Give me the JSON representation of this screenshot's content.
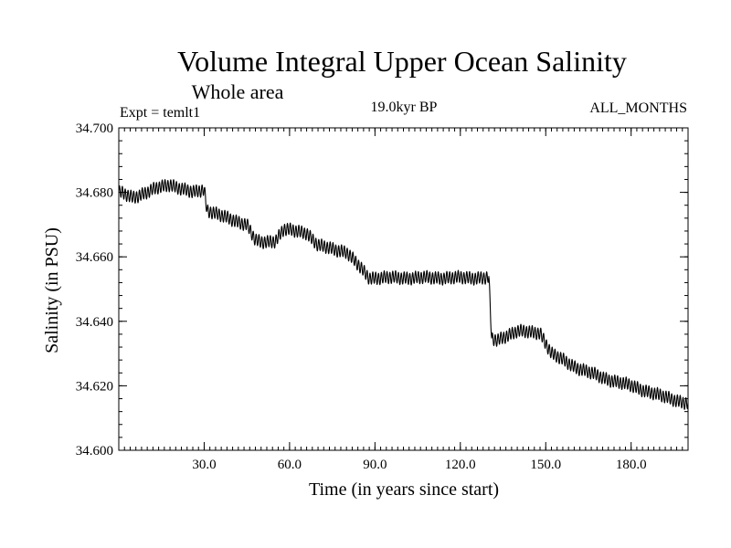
{
  "chart_data": {
    "type": "line",
    "title": "Volume Integral Upper Ocean Salinity",
    "subtitle": "Whole area",
    "experiment": "Expt = temlt1",
    "period": "19.0kyr BP",
    "months": "ALL_MONTHS",
    "xlabel": "Time (in years since start)",
    "ylabel": "Salinity (in PSU)",
    "xlim": [
      0,
      200
    ],
    "ylim": [
      34.6,
      34.7
    ],
    "xticks": [
      30,
      60,
      90,
      120,
      150,
      180
    ],
    "xtick_labels": [
      "30.0",
      "60.0",
      "90.0",
      "120.0",
      "150.0",
      "180.0"
    ],
    "yticks": [
      34.6,
      34.62,
      34.64,
      34.66,
      34.68,
      34.7
    ],
    "ytick_labels": [
      "34.600",
      "34.620",
      "34.640",
      "34.660",
      "34.680",
      "34.700"
    ],
    "grid": false,
    "series": [
      {
        "name": "salinity",
        "seasonal_cycle_amplitude": 0.0018,
        "trend": {
          "x": [
            0,
            5,
            10,
            14,
            18,
            22,
            26,
            30,
            31,
            35,
            40,
            45,
            48,
            50,
            55,
            58,
            62,
            66,
            70,
            75,
            80,
            85,
            88,
            90,
            100,
            110,
            120,
            130,
            131,
            133,
            136,
            140,
            145,
            148,
            152,
            160,
            170,
            180,
            190,
            200
          ],
          "y": [
            34.68,
            34.6785,
            34.68,
            34.6815,
            34.6825,
            34.681,
            34.68,
            34.681,
            34.6745,
            34.673,
            34.6715,
            34.67,
            34.665,
            34.6645,
            34.665,
            34.6685,
            34.668,
            34.6675,
            34.6635,
            34.6625,
            34.6615,
            34.6565,
            34.6535,
            34.6535,
            34.6535,
            34.6535,
            34.6535,
            34.6535,
            34.6345,
            34.634,
            34.6355,
            34.637,
            34.6365,
            34.6365,
            34.63,
            34.626,
            34.6225,
            34.62,
            34.617,
            34.6145
          ]
        }
      }
    ]
  }
}
